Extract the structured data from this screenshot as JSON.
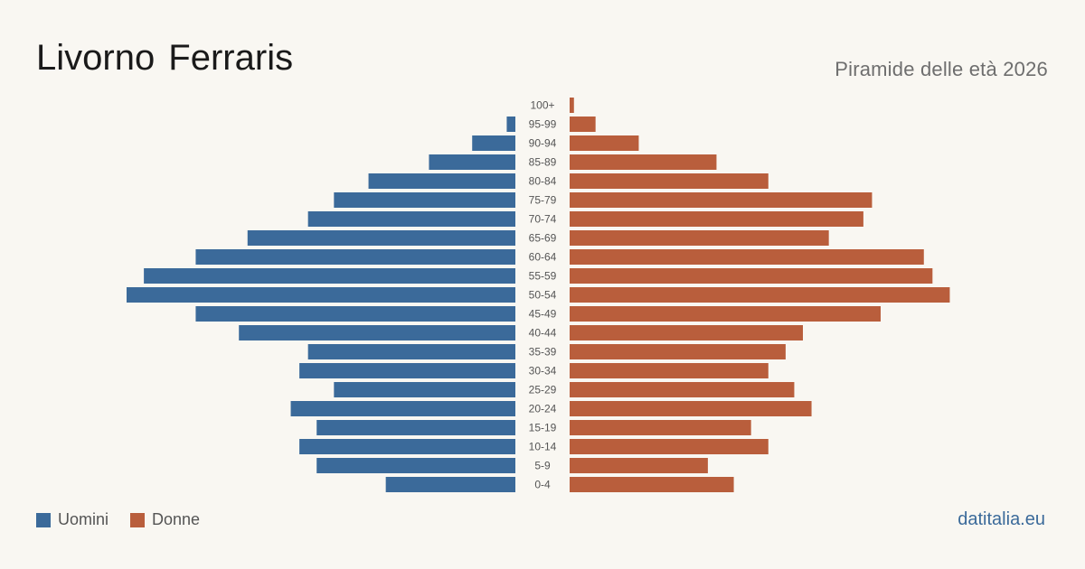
{
  "header": {
    "title": "Livorno Ferraris",
    "subtitle": "Piramide delle età 2026"
  },
  "legend": {
    "men_label": "Uomini",
    "women_label": "Donne"
  },
  "brand": "datitalia.eu",
  "colors": {
    "men": "#3b6a9a",
    "women": "#b95e3c",
    "background": "#f9f7f2"
  },
  "chart_data": {
    "type": "bar",
    "orientation": "horizontal-population-pyramid",
    "categories": [
      "100+",
      "95-99",
      "90-94",
      "85-89",
      "80-84",
      "75-79",
      "70-74",
      "65-69",
      "60-64",
      "55-59",
      "50-54",
      "45-49",
      "40-44",
      "35-39",
      "30-34",
      "25-29",
      "20-24",
      "15-19",
      "10-14",
      "5-9",
      "0-4"
    ],
    "series": [
      {
        "name": "Uomini",
        "values": [
          0,
          1,
          5,
          10,
          17,
          21,
          24,
          31,
          37,
          43,
          45,
          37,
          32,
          24,
          25,
          21,
          26,
          23,
          25,
          23,
          15
        ]
      },
      {
        "name": "Donne",
        "values": [
          0.5,
          3,
          8,
          17,
          23,
          35,
          34,
          30,
          41,
          42,
          44,
          36,
          27,
          25,
          23,
          26,
          28,
          21,
          23,
          16,
          19
        ]
      }
    ]
  }
}
